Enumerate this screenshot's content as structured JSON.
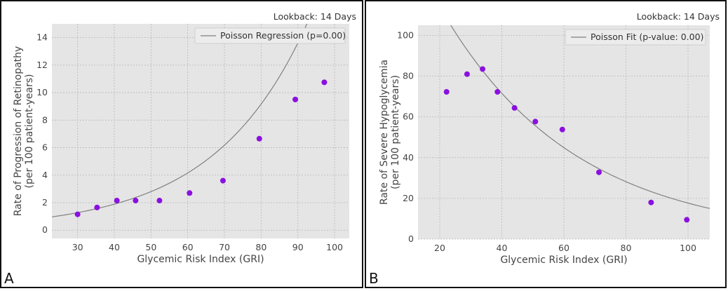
{
  "colors": {
    "plot_bg": "#e5e5e5",
    "grid": "#b8b8b8",
    "point": "#8a10e0",
    "line": "#808080",
    "axis_text": "#444444"
  },
  "panels": [
    {
      "letter": "A",
      "lookback": "Lookback: 14 Days"
    },
    {
      "letter": "B",
      "lookback": "Lookback: 14 Days"
    }
  ],
  "chart_data": [
    {
      "type": "scatter",
      "title": "",
      "xlabel": "Glycemic Risk Index (GRI)",
      "ylabel": "Rate of Progression of Retinopathy",
      "ylabel2": "(per 100 patient-years)",
      "xlim": [
        23,
        104
      ],
      "ylim": [
        -0.6,
        15
      ],
      "xticks": [
        30,
        40,
        50,
        60,
        70,
        80,
        90,
        100
      ],
      "yticks": [
        0,
        2,
        4,
        6,
        8,
        10,
        12,
        14
      ],
      "legend_position": "top-right",
      "grid": true,
      "series": [
        {
          "kind": "points",
          "x": [
            30,
            35.3,
            40.7,
            45.8,
            52.3,
            60.5,
            69.6,
            79.5,
            89.3,
            97.2
          ],
          "y": [
            1.15,
            1.65,
            2.15,
            2.15,
            2.15,
            2.7,
            3.6,
            6.65,
            9.5,
            10.75
          ]
        },
        {
          "kind": "fit",
          "name": "Poisson Regression (p=0.00)",
          "model": "exp",
          "a": 0.389,
          "b": 0.0395,
          "x_range": [
            23,
            104
          ]
        }
      ]
    },
    {
      "type": "scatter",
      "title": "",
      "xlabel": "Glycemic Risk Index (GRI)",
      "ylabel": "Rate of Severe Hypoglycemia",
      "ylabel2": "(per 100 patient-years)",
      "xlim": [
        13,
        107
      ],
      "ylim": [
        0,
        105
      ],
      "xticks": [
        20,
        40,
        60,
        80,
        100
      ],
      "yticks": [
        0,
        20,
        40,
        60,
        80,
        100
      ],
      "legend_position": "top-right",
      "grid": true,
      "series": [
        {
          "kind": "points",
          "x": [
            22.2,
            28.8,
            33.8,
            38.6,
            44.1,
            50.8,
            59.5,
            71.3,
            88.1,
            99.6
          ],
          "y": [
            72.3,
            81.0,
            83.5,
            72.3,
            64.4,
            57.7,
            53.8,
            32.8,
            18.0,
            9.5
          ]
        },
        {
          "kind": "fit",
          "name": "Poisson Fit (p-value: 0.00)",
          "model": "exp",
          "a": 181.8,
          "b": -0.0233,
          "x_range": [
            18,
            107
          ]
        }
      ]
    }
  ]
}
